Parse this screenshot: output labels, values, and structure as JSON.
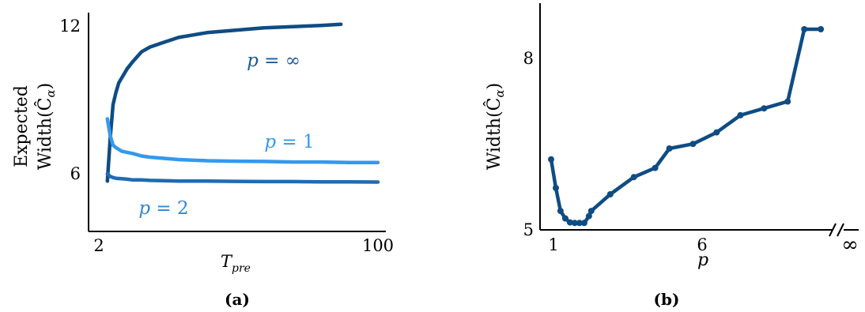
{
  "chart_data": [
    {
      "panel_label": "(a)",
      "type": "line",
      "ylabel_line1": "Expected",
      "ylabel_line2": "Width(Ĉ",
      "ylabel_sub": "α",
      "ylabel_close": ")",
      "xlabel_main": "T",
      "xlabel_sub": "pre",
      "xlim": [
        2,
        100
      ],
      "ylim": [
        3.4,
        12.6
      ],
      "xticks": [
        {
          "value": 2,
          "label": "2"
        },
        {
          "value": 100,
          "label": "100"
        }
      ],
      "yticks": [
        {
          "value": 6,
          "label": "6"
        },
        {
          "value": 12,
          "label": "12"
        }
      ],
      "series": [
        {
          "name": "p = ∞",
          "name_var": "p",
          "name_eq": " = ",
          "name_val": "∞",
          "color": "#0f4c84",
          "x": [
            5,
            6,
            7,
            8,
            9,
            10,
            12,
            14,
            17,
            20,
            25,
            30,
            35,
            40,
            50,
            60,
            70,
            80,
            87
          ],
          "y": [
            5.5,
            7.3,
            8.7,
            9.2,
            9.6,
            9.8,
            10.2,
            10.5,
            10.9,
            11.1,
            11.3,
            11.5,
            11.6,
            11.7,
            11.8,
            11.9,
            11.95,
            12.0,
            12.05
          ]
        },
        {
          "name": "p = 1",
          "name_var": "p",
          "name_eq": " = ",
          "name_val": "1",
          "color": "#3399ee",
          "x": [
            5,
            6,
            7,
            8,
            10,
            12,
            14,
            17,
            20,
            25,
            30,
            40,
            50,
            60,
            70,
            80,
            90,
            100
          ],
          "y": [
            8.1,
            7.4,
            7.0,
            6.9,
            6.75,
            6.7,
            6.65,
            6.55,
            6.5,
            6.45,
            6.4,
            6.35,
            6.33,
            6.32,
            6.3,
            6.3,
            6.28,
            6.28
          ]
        },
        {
          "name": "p = 2",
          "name_var": "p",
          "name_eq": " = ",
          "name_val": "2",
          "color": "#1f6bb5",
          "x": [
            5,
            6,
            7,
            8,
            10,
            12,
            14,
            17,
            20,
            25,
            30,
            40,
            50,
            60,
            70,
            80,
            90,
            100
          ],
          "y": [
            5.8,
            5.7,
            5.65,
            5.62,
            5.6,
            5.58,
            5.55,
            5.55,
            5.53,
            5.52,
            5.5,
            5.5,
            5.49,
            5.48,
            5.48,
            5.47,
            5.47,
            5.46
          ]
        }
      ]
    },
    {
      "panel_label": "(b)",
      "type": "line",
      "ylabel": "Width(Ĉ",
      "ylabel_sub": "α",
      "ylabel_close": ")",
      "xlabel": "p",
      "xlim": [
        0.6,
        14
      ],
      "ylim": [
        5,
        8.9
      ],
      "xticks": [
        {
          "value": 1,
          "label": "1"
        },
        {
          "value": 6,
          "label": "6"
        },
        {
          "value": 13.5,
          "label": "∞"
        }
      ],
      "yticks": [
        {
          "value": 5,
          "label": "5"
        },
        {
          "value": 8,
          "label": "8"
        }
      ],
      "x_axis_break": true,
      "series": [
        {
          "color": "#0f4c84",
          "x": [
            1,
            1.2,
            1.4,
            1.6,
            1.8,
            2,
            2.2,
            2.4,
            2.6,
            2.7,
            3.5,
            4.5,
            5.4,
            6.0,
            7.0,
            8.0,
            9.0,
            10.0,
            11.0,
            11.7,
            12.4
          ],
          "y": [
            6.23,
            5.73,
            5.33,
            5.2,
            5.13,
            5.12,
            5.12,
            5.12,
            5.24,
            5.33,
            5.62,
            5.92,
            6.08,
            6.42,
            6.5,
            6.7,
            7.0,
            7.12,
            7.24,
            8.5,
            8.5
          ]
        }
      ]
    }
  ]
}
